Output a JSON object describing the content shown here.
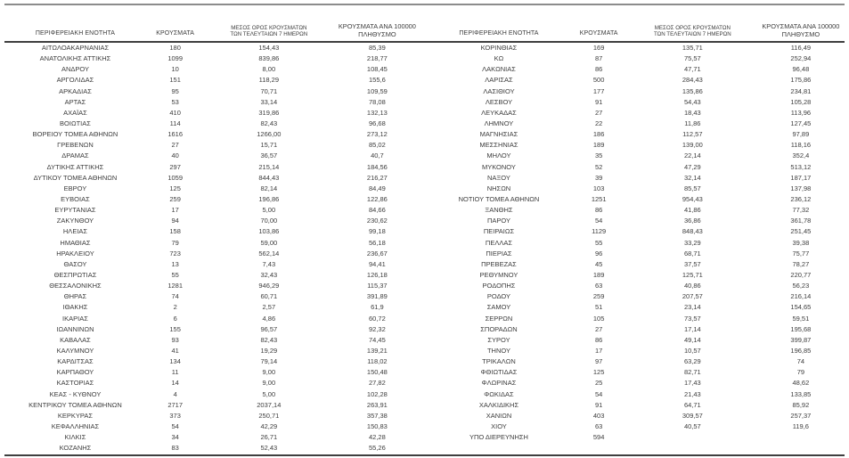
{
  "columns": {
    "region": "ΠΕΡΙΦΕΡΕΙΑΚΗ ΕΝΟΤΗΤΑ",
    "cases": "ΚΡΟΥΣΜΑΤΑ",
    "avg7_line1": "ΜΕΣΟΣ ΟΡΟΣ ΚΡΟΥΣΜΑΤΩΝ",
    "avg7_line2": "ΤΩΝ ΤΕΛΕΥΤΑΙΩΝ 7 ΗΜΕΡΩΝ",
    "per100k_line1": "ΚΡΟΥΣΜΑΤΑ ΑΝΑ 100000",
    "per100k_line2": "ΠΛΗΘΥΣΜΟ"
  },
  "colors": {
    "background": "#ffffff",
    "text": "#3c3c3c",
    "rule_dark": "#3f3f3f",
    "rule_gray": "#8c8c8c"
  },
  "left_table": {
    "rows": [
      [
        "ΑΙΤΩΛΟΑΚΑΡΝΑΝΙΑΣ",
        "180",
        "154,43",
        "85,39"
      ],
      [
        "ΑΝΑΤΟΛΙΚΗΣ ΑΤΤΙΚΗΣ",
        "1099",
        "839,86",
        "218,77"
      ],
      [
        "ΑΝΔΡΟΥ",
        "10",
        "8,00",
        "108,45"
      ],
      [
        "ΑΡΓΟΛΙΔΑΣ",
        "151",
        "118,29",
        "155,6"
      ],
      [
        "ΑΡΚΑΔΙΑΣ",
        "95",
        "70,71",
        "109,59"
      ],
      [
        "ΑΡΤΑΣ",
        "53",
        "33,14",
        "78,08"
      ],
      [
        "ΑΧΑΪΑΣ",
        "410",
        "319,86",
        "132,13"
      ],
      [
        "ΒΟΙΩΤΙΑΣ",
        "114",
        "82,43",
        "96,68"
      ],
      [
        "ΒΟΡΕΙΟΥ ΤΟΜΕΑ ΑΘΗΝΩΝ",
        "1616",
        "1266,00",
        "273,12"
      ],
      [
        "ΓΡΕΒΕΝΩΝ",
        "27",
        "15,71",
        "85,02"
      ],
      [
        "ΔΡΑΜΑΣ",
        "40",
        "36,57",
        "40,7"
      ],
      [
        "ΔΥΤΙΚΗΣ ΑΤΤΙΚΗΣ",
        "297",
        "215,14",
        "184,56"
      ],
      [
        "ΔΥΤΙΚΟΥ ΤΟΜΕΑ ΑΘΗΝΩΝ",
        "1059",
        "844,43",
        "216,27"
      ],
      [
        "ΕΒΡΟΥ",
        "125",
        "82,14",
        "84,49"
      ],
      [
        "ΕΥΒΟΙΑΣ",
        "259",
        "196,86",
        "122,86"
      ],
      [
        "ΕΥΡΥΤΑΝΙΑΣ",
        "17",
        "5,00",
        "84,66"
      ],
      [
        "ΖΑΚΥΝΘΟΥ",
        "94",
        "70,00",
        "230,62"
      ],
      [
        "ΗΛΕΙΑΣ",
        "158",
        "103,86",
        "99,18"
      ],
      [
        "ΗΜΑΘΙΑΣ",
        "79",
        "59,00",
        "56,18"
      ],
      [
        "ΗΡΑΚΛΕΙΟΥ",
        "723",
        "562,14",
        "236,67"
      ],
      [
        "ΘΑΣΟΥ",
        "13",
        "7,43",
        "94,41"
      ],
      [
        "ΘΕΣΠΡΩΤΙΑΣ",
        "55",
        "32,43",
        "126,18"
      ],
      [
        "ΘΕΣΣΑΛΟΝΙΚΗΣ",
        "1281",
        "946,29",
        "115,37"
      ],
      [
        "ΘΗΡΑΣ",
        "74",
        "60,71",
        "391,89"
      ],
      [
        "ΙΘΑΚΗΣ",
        "2",
        "2,57",
        "61,9"
      ],
      [
        "ΙΚΑΡΙΑΣ",
        "6",
        "4,86",
        "60,72"
      ],
      [
        "ΙΩΑΝΝΙΝΩΝ",
        "155",
        "96,57",
        "92,32"
      ],
      [
        "ΚΑΒΑΛΑΣ",
        "93",
        "82,43",
        "74,45"
      ],
      [
        "ΚΑΛΥΜΝΟΥ",
        "41",
        "19,29",
        "139,21"
      ],
      [
        "ΚΑΡΔΙΤΣΑΣ",
        "134",
        "79,14",
        "118,02"
      ],
      [
        "ΚΑΡΠΑΘΟΥ",
        "11",
        "9,00",
        "150,48"
      ],
      [
        "ΚΑΣΤΟΡΙΑΣ",
        "14",
        "9,00",
        "27,82"
      ],
      [
        "ΚΕΑΣ - ΚΥΘΝΟΥ",
        "4",
        "5,00",
        "102,28"
      ],
      [
        "ΚΕΝΤΡΙΚΟΥ ΤΟΜΕΑ ΑΘΗΝΩΝ",
        "2717",
        "2037,14",
        "263,91"
      ],
      [
        "ΚΕΡΚΥΡΑΣ",
        "373",
        "250,71",
        "357,38"
      ],
      [
        "ΚΕΦΑΛΛΗΝΙΑΣ",
        "54",
        "42,29",
        "150,83"
      ],
      [
        "ΚΙΛΚΙΣ",
        "34",
        "26,71",
        "42,28"
      ],
      [
        "ΚΟΖΑΝΗΣ",
        "83",
        "52,43",
        "55,26"
      ]
    ]
  },
  "right_table": {
    "rows": [
      [
        "ΚΟΡΙΝΘΙΑΣ",
        "169",
        "135,71",
        "116,49"
      ],
      [
        "ΚΩ",
        "87",
        "75,57",
        "252,94"
      ],
      [
        "ΛΑΚΩΝΙΑΣ",
        "86",
        "47,71",
        "96,48"
      ],
      [
        "ΛΑΡΙΣΑΣ",
        "500",
        "284,43",
        "175,86"
      ],
      [
        "ΛΑΣΙΘΙΟΥ",
        "177",
        "135,86",
        "234,81"
      ],
      [
        "ΛΕΣΒΟΥ",
        "91",
        "54,43",
        "105,28"
      ],
      [
        "ΛΕΥΚΑΔΑΣ",
        "27",
        "18,43",
        "113,96"
      ],
      [
        "ΛΗΜΝΟΥ",
        "22",
        "11,86",
        "127,45"
      ],
      [
        "ΜΑΓΝΗΣΙΑΣ",
        "186",
        "112,57",
        "97,89"
      ],
      [
        "ΜΕΣΣΗΝΙΑΣ",
        "189",
        "139,00",
        "118,16"
      ],
      [
        "ΜΗΛΟΥ",
        "35",
        "22,14",
        "352,4"
      ],
      [
        "ΜΥΚΟΝΟΥ",
        "52",
        "47,29",
        "513,12"
      ],
      [
        "ΝΑΞΟΥ",
        "39",
        "32,14",
        "187,17"
      ],
      [
        "ΝΗΣΩΝ",
        "103",
        "85,57",
        "137,98"
      ],
      [
        "ΝΟΤΙΟΥ ΤΟΜΕΑ ΑΘΗΝΩΝ",
        "1251",
        "954,43",
        "236,12"
      ],
      [
        "ΞΑΝΘΗΣ",
        "86",
        "41,86",
        "77,32"
      ],
      [
        "ΠΑΡΟΥ",
        "54",
        "36,86",
        "361,78"
      ],
      [
        "ΠΕΙΡΑΙΩΣ",
        "1129",
        "848,43",
        "251,45"
      ],
      [
        "ΠΕΛΛΑΣ",
        "55",
        "33,29",
        "39,38"
      ],
      [
        "ΠΙΕΡΙΑΣ",
        "96",
        "68,71",
        "75,77"
      ],
      [
        "ΠΡΕΒΕΖΑΣ",
        "45",
        "37,57",
        "78,27"
      ],
      [
        "ΡΕΘΥΜΝΟΥ",
        "189",
        "125,71",
        "220,77"
      ],
      [
        "ΡΟΔΟΠΗΣ",
        "63",
        "40,86",
        "56,23"
      ],
      [
        "ΡΟΔΟΥ",
        "259",
        "207,57",
        "216,14"
      ],
      [
        "ΣΑΜΟΥ",
        "51",
        "23,14",
        "154,65"
      ],
      [
        "ΣΕΡΡΩΝ",
        "105",
        "73,57",
        "59,51"
      ],
      [
        "ΣΠΟΡΑΔΩΝ",
        "27",
        "17,14",
        "195,68"
      ],
      [
        "ΣΥΡΟΥ",
        "86",
        "49,14",
        "399,87"
      ],
      [
        "ΤΗΝΟΥ",
        "17",
        "10,57",
        "196,85"
      ],
      [
        "ΤΡΙΚΑΛΩΝ",
        "97",
        "63,29",
        "74"
      ],
      [
        "ΦΘΙΩΤΙΔΑΣ",
        "125",
        "82,71",
        "79"
      ],
      [
        "ΦΛΩΡΙΝΑΣ",
        "25",
        "17,43",
        "48,62"
      ],
      [
        "ΦΩΚΙΔΑΣ",
        "54",
        "21,43",
        "133,85"
      ],
      [
        "ΧΑΛΚΙΔΙΚΗΣ",
        "91",
        "64,71",
        "85,92"
      ],
      [
        "ΧΑΝΙΩΝ",
        "403",
        "309,57",
        "257,37"
      ],
      [
        "ΧΙΟΥ",
        "63",
        "40,57",
        "119,6"
      ],
      [
        "ΥΠΟ ΔΙΕΡΕΥΝΗΣΗ",
        "594",
        "",
        ""
      ]
    ]
  }
}
